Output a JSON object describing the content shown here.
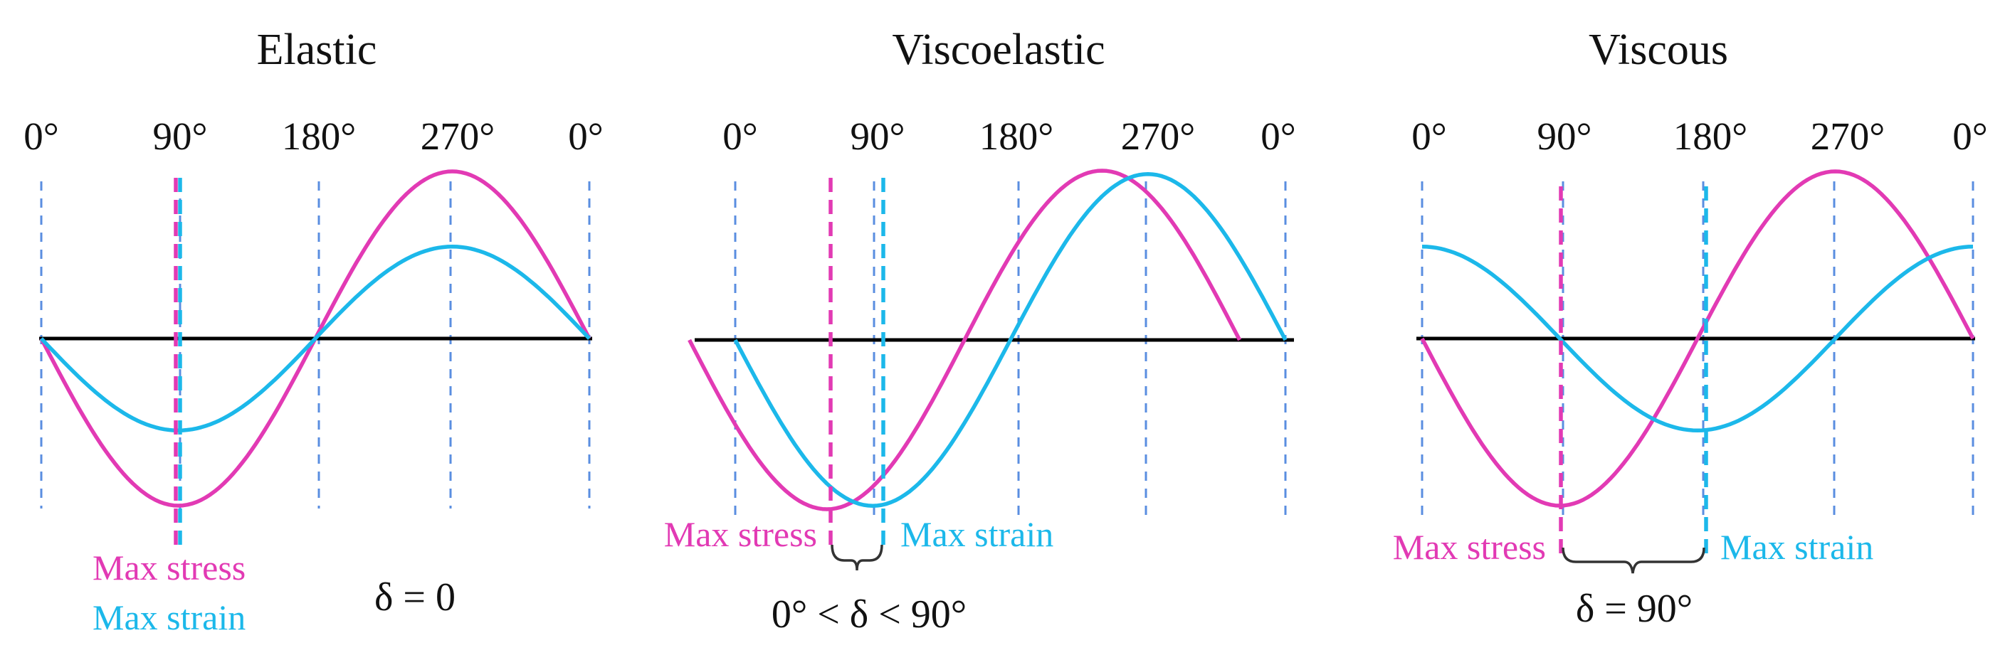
{
  "panels": [
    {
      "id": "elastic",
      "title": "Elastic",
      "ticks": [
        "0°",
        "90°",
        "180°",
        "270°",
        "0°"
      ],
      "max_stress_label": "Max stress",
      "max_strain_label": "Max strain",
      "phase_label": "δ = 0",
      "strain_to_stress_amplitude": 0.55,
      "stress_phase_deg": 0,
      "strain_phase_deg": 0
    },
    {
      "id": "viscoelastic",
      "title": "Viscoelastic",
      "ticks": [
        "0°",
        "90°",
        "180°",
        "270°",
        "0°"
      ],
      "max_stress_label": "Max stress",
      "max_strain_label": "Max strain",
      "phase_label": "0° < δ < 90°",
      "strain_to_stress_amplitude": 0.98,
      "stress_phase_deg": -30,
      "strain_phase_deg": 0
    },
    {
      "id": "viscous",
      "title": "Viscous",
      "ticks": [
        "0°",
        "90°",
        "180°",
        "270°",
        "0°"
      ],
      "max_stress_label": "Max stress",
      "max_strain_label": "Max strain",
      "phase_label": "δ = 90°",
      "strain_to_stress_amplitude": 0.55,
      "stress_phase_deg": 0,
      "strain_phase_deg": 90
    }
  ],
  "colors": {
    "stress": "#e23ab4",
    "strain": "#1cb8ea",
    "axis": "#000000",
    "guide": "#5a8ee0"
  }
}
